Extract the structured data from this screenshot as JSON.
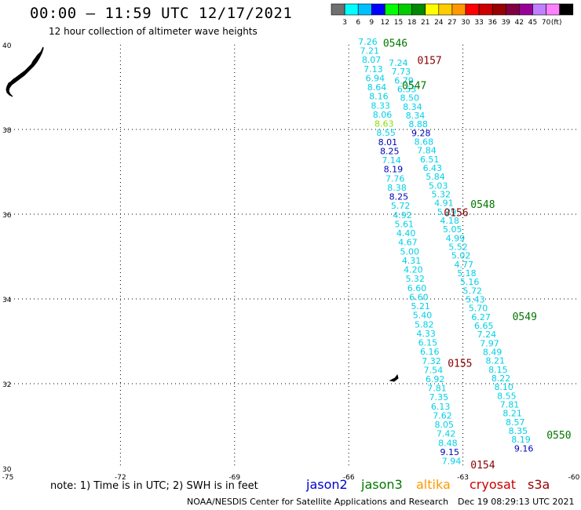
{
  "header": {
    "title": "00:00 – 11:59 UTC 12/17/2021",
    "subtitle": "12 hour collection of altimeter wave heights"
  },
  "colorbar": {
    "colors": [
      "#707070",
      "#00ffff",
      "#00bfff",
      "#0000ff",
      "#00ff00",
      "#00cc00",
      "#008800",
      "#ffff00",
      "#ffcc00",
      "#ff9900",
      "#ff0000",
      "#cc0000",
      "#990000",
      "#800040",
      "#990099",
      "#c080ff",
      "#ff80ff",
      "#000000"
    ],
    "labels": [
      "3",
      "6",
      "9",
      "12",
      "15",
      "18",
      "21",
      "24",
      "27",
      "30",
      "33",
      "36",
      "39",
      "42",
      "45",
      "70",
      "(ft)"
    ]
  },
  "chart_data": {
    "type": "scatter",
    "title": "",
    "xlabel": "",
    "ylabel": "",
    "xlim": [
      -75,
      -60
    ],
    "ylim": [
      30,
      40
    ],
    "grid": true,
    "x_ticks": [
      "-75",
      "-72",
      "-69",
      "-66",
      "-63",
      "-60"
    ],
    "y_ticks": [
      "30",
      "32",
      "34",
      "36",
      "38",
      "40"
    ],
    "tracks": [
      {
        "name": "jason3 pass A",
        "start": [
          -65.5,
          40
        ],
        "end": [
          -63.3,
          30.1
        ],
        "values": [
          "7.26",
          "7.21",
          "8.07",
          "7.13",
          "6.94",
          "8.64",
          "8.16",
          "8.33",
          "8.06",
          "8.63",
          "8.55",
          "8.01",
          "8.25",
          "7.14",
          "8.19",
          "7.76",
          "8.38",
          "8.25",
          "5.72",
          "4.92",
          "5.61",
          "4.40",
          "4.67",
          "5.00",
          "4.31",
          "4.20",
          "5.32",
          "6.60",
          "6.60",
          "5.21",
          "5.40",
          "5.82",
          "4.33",
          "6.15",
          "6.16",
          "7.32",
          "7.54",
          "6.92",
          "7.81",
          "7.35",
          "6.13",
          "7.62",
          "8.05",
          "7.42",
          "8.48",
          "9.15",
          "7.94"
        ],
        "dark": [
          "8.01",
          "8.25",
          "8.19",
          "9.15"
        ],
        "green": [
          "8.63"
        ]
      },
      {
        "name": "jason3 pass B",
        "start": [
          -64.7,
          39.5
        ],
        "end": [
          -61.4,
          30.4
        ],
        "values": [
          "7.24",
          "7.73",
          "6.79",
          "6.53",
          "8.50",
          "8.34",
          "8.34",
          "8.88",
          "9.28",
          "8.68",
          "7.84",
          "6.51",
          "6.43",
          "5.84",
          "5.03",
          "5.32",
          "4.91",
          "5.29",
          "4.18",
          "5.05",
          "4.99",
          "5.52",
          "5.02",
          "4.77",
          "5.18",
          "5.16",
          "5.72",
          "5.43",
          "5.70",
          "6.27",
          "6.65",
          "7.24",
          "7.97",
          "8.49",
          "8.21",
          "8.15",
          "8.22",
          "8.10",
          "8.55",
          "7.81",
          "8.21",
          "8.57",
          "8.35",
          "8.19",
          "9.16"
        ],
        "dark": [
          "9.28",
          "9.16"
        ],
        "green": []
      }
    ],
    "time_labels": [
      {
        "text": "0546",
        "color": "#007700",
        "lon": -65.1,
        "lat": 39.95
      },
      {
        "text": "0157",
        "color": "#880000",
        "lon": -64.2,
        "lat": 39.55
      },
      {
        "text": "0547",
        "color": "#007700",
        "lon": -64.6,
        "lat": 38.95
      },
      {
        "text": "0548",
        "color": "#007700",
        "lon": -62.8,
        "lat": 36.15
      },
      {
        "text": "0156",
        "color": "#880000",
        "lon": -63.5,
        "lat": 35.95
      },
      {
        "text": "0549",
        "color": "#007700",
        "lon": -61.7,
        "lat": 33.5
      },
      {
        "text": "0155",
        "color": "#880000",
        "lon": -63.4,
        "lat": 32.4
      },
      {
        "text": "0550",
        "color": "#007700",
        "lon": -60.8,
        "lat": 30.7
      },
      {
        "text": "0154",
        "color": "#880000",
        "lon": -62.8,
        "lat": 30.0
      }
    ]
  },
  "legend": {
    "note": "note:  1) Time is in UTC;  2) SWH is in feet",
    "satellites": [
      {
        "name": "jason2",
        "color": "#0000cc"
      },
      {
        "name": "jason3",
        "color": "#007700"
      },
      {
        "name": "altika",
        "color": "#ff9900"
      },
      {
        "name": "cryosat",
        "color": "#cc0000"
      },
      {
        "name": "s3a",
        "color": "#990000"
      }
    ]
  },
  "footer": {
    "credit": "NOAA/NESDIS Center for Satellite Applications and Research",
    "date": "Dec 19 08:29:13 UTC 2021"
  }
}
